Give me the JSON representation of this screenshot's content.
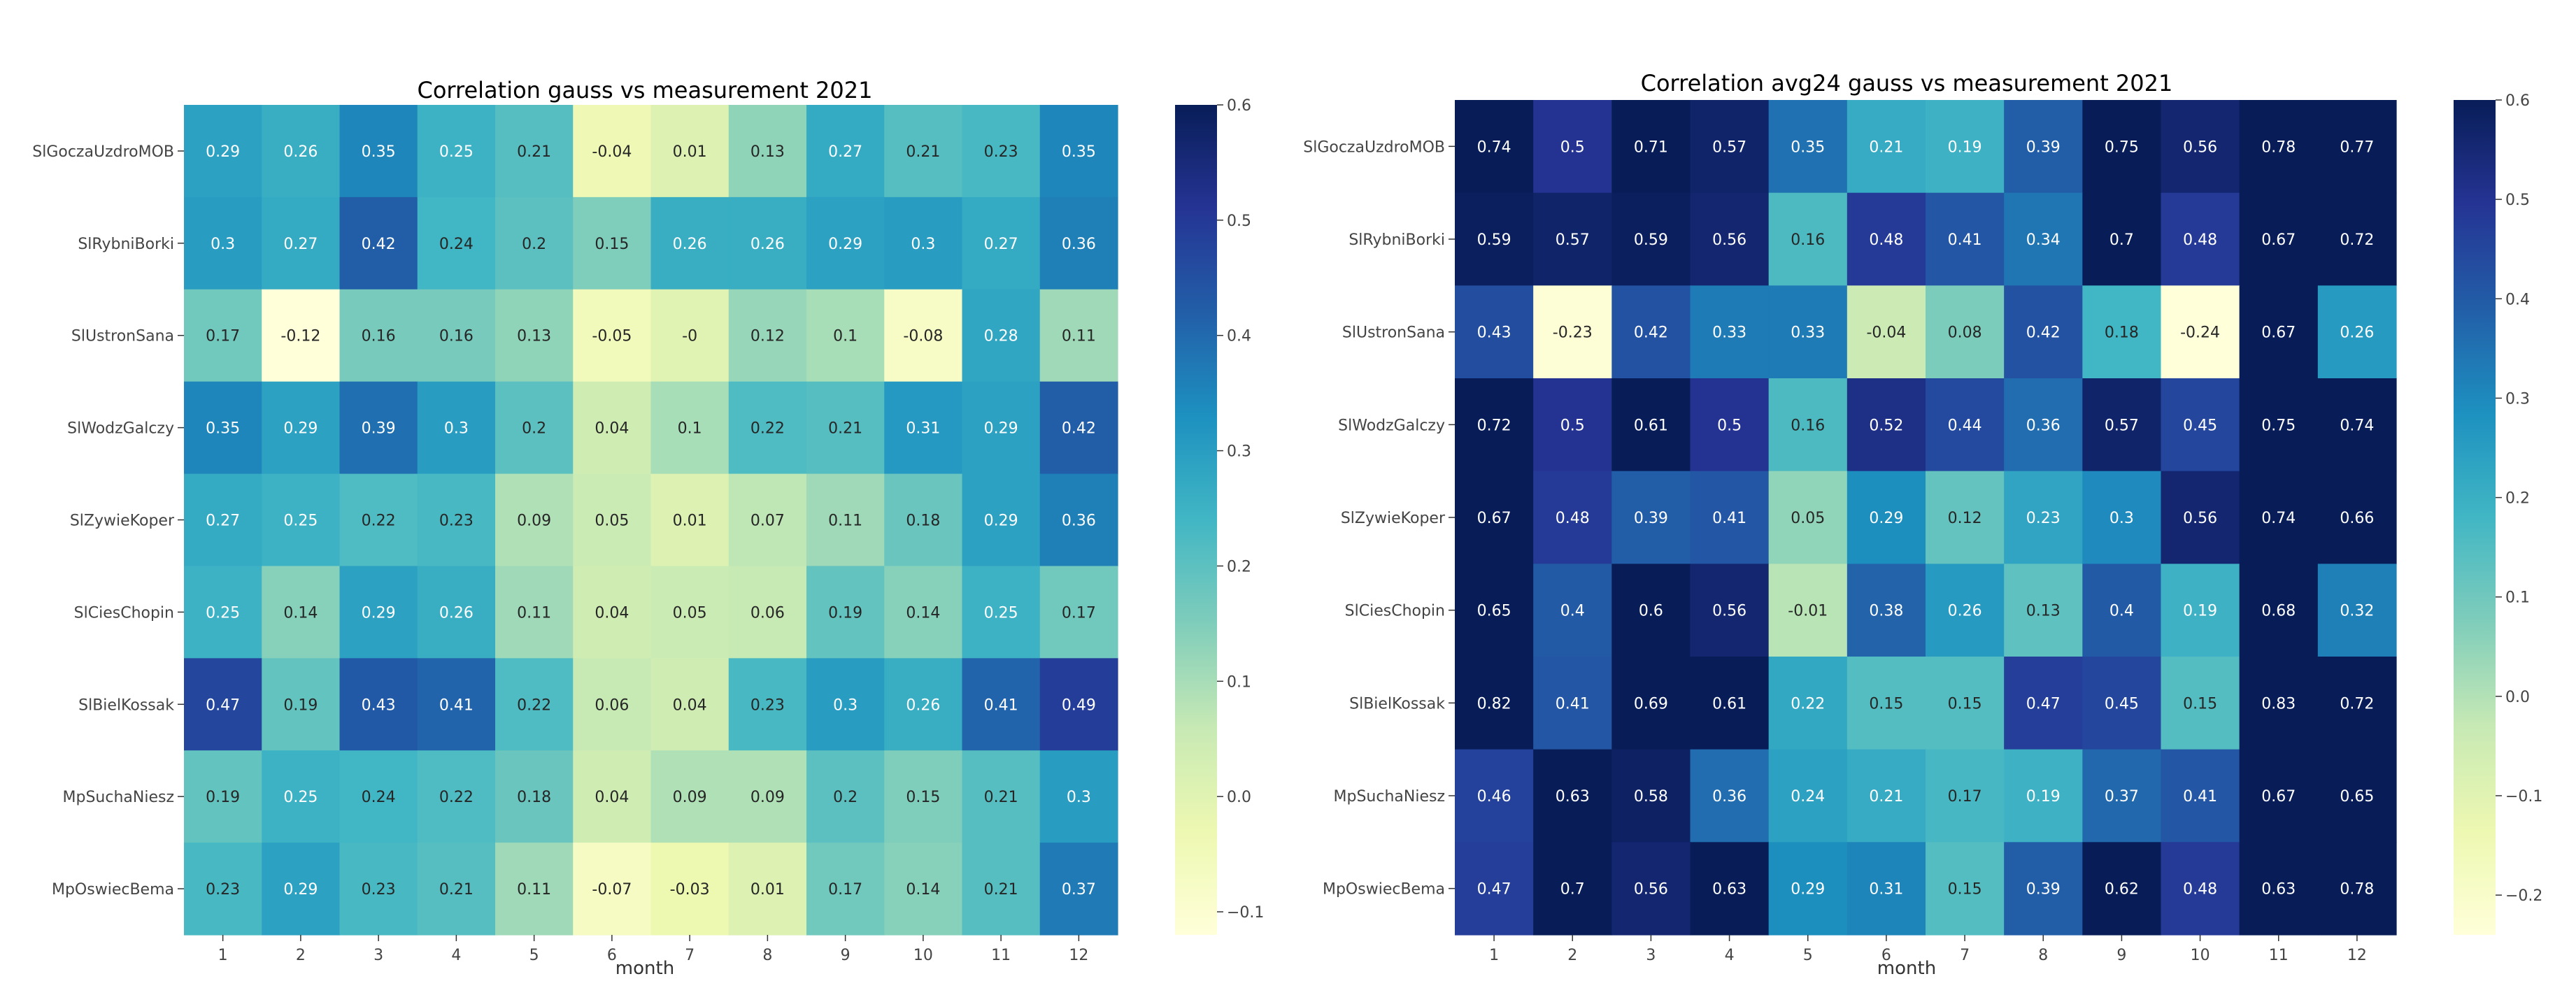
{
  "chart_data": [
    {
      "type": "heatmap",
      "title": "Correlation gauss vs measurement 2021",
      "xlabel": "month",
      "ylabel": "",
      "x_categories": [
        "1",
        "2",
        "3",
        "4",
        "5",
        "6",
        "7",
        "8",
        "9",
        "10",
        "11",
        "12"
      ],
      "y_categories": [
        "SlGoczaUzdroMOB",
        "SlRybniBorki",
        "SlUstronSana",
        "SlWodzGalczy",
        "SlZywieKoper",
        "SlCiesChopin",
        "SlBielKossak",
        "MpSuchaNiesz",
        "MpOswiecBema"
      ],
      "values": [
        [
          0.29,
          0.26,
          0.35,
          0.25,
          0.21,
          -0.04,
          0.01,
          0.13,
          0.27,
          0.21,
          0.23,
          0.35
        ],
        [
          0.3,
          0.27,
          0.42,
          0.24,
          0.2,
          0.15,
          0.26,
          0.26,
          0.29,
          0.3,
          0.27,
          0.36
        ],
        [
          0.17,
          -0.12,
          0.16,
          0.16,
          0.13,
          -0.05,
          0,
          0.12,
          0.1,
          -0.08,
          0.28,
          0.11
        ],
        [
          0.35,
          0.29,
          0.39,
          0.3,
          0.2,
          0.04,
          0.1,
          0.22,
          0.21,
          0.31,
          0.29,
          0.42
        ],
        [
          0.27,
          0.25,
          0.22,
          0.23,
          0.09,
          0.05,
          0.01,
          0.07,
          0.11,
          0.18,
          0.29,
          0.36
        ],
        [
          0.25,
          0.14,
          0.29,
          0.26,
          0.11,
          0.04,
          0.05,
          0.06,
          0.19,
          0.14,
          0.25,
          0.17
        ],
        [
          0.47,
          0.19,
          0.43,
          0.41,
          0.22,
          0.06,
          0.04,
          0.23,
          0.3,
          0.26,
          0.41,
          0.49
        ],
        [
          0.19,
          0.25,
          0.24,
          0.22,
          0.18,
          0.04,
          0.09,
          0.09,
          0.2,
          0.15,
          0.21,
          0.3
        ],
        [
          0.23,
          0.29,
          0.23,
          0.21,
          0.11,
          -0.07,
          -0.03,
          0.01,
          0.17,
          0.14,
          0.21,
          0.37
        ]
      ],
      "vmin": -0.12,
      "vmax": 0.6,
      "colorbar_ticks": [
        -0.1,
        0,
        0.1,
        0.2,
        0.3,
        0.4,
        0.5,
        0.6
      ],
      "colorbar_tick_labels": [
        "−0.1",
        "0.0",
        "0.1",
        "0.2",
        "0.3",
        "0.4",
        "0.5",
        "0.6"
      ],
      "cell_labels": [
        [
          "0.29",
          "0.26",
          "0.35",
          "0.25",
          "0.21",
          "-0.04",
          "0.01",
          "0.13",
          "0.27",
          "0.21",
          "0.23",
          "0.35"
        ],
        [
          "0.3",
          "0.27",
          "0.42",
          "0.24",
          "0.2",
          "0.15",
          "0.26",
          "0.26",
          "0.29",
          "0.3",
          "0.27",
          "0.36"
        ],
        [
          "0.17",
          "-0.12",
          "0.16",
          "0.16",
          "0.13",
          "-0.05",
          "-0",
          "0.12",
          "0.1",
          "-0.08",
          "0.28",
          "0.11"
        ],
        [
          "0.35",
          "0.29",
          "0.39",
          "0.3",
          "0.2",
          "0.04",
          "0.1",
          "0.22",
          "0.21",
          "0.31",
          "0.29",
          "0.42"
        ],
        [
          "0.27",
          "0.25",
          "0.22",
          "0.23",
          "0.09",
          "0.05",
          "0.01",
          "0.07",
          "0.11",
          "0.18",
          "0.29",
          "0.36"
        ],
        [
          "0.25",
          "0.14",
          "0.29",
          "0.26",
          "0.11",
          "0.04",
          "0.05",
          "0.06",
          "0.19",
          "0.14",
          "0.25",
          "0.17"
        ],
        [
          "0.47",
          "0.19",
          "0.43",
          "0.41",
          "0.22",
          "0.06",
          "0.04",
          "0.23",
          "0.3",
          "0.26",
          "0.41",
          "0.49"
        ],
        [
          "0.19",
          "0.25",
          "0.24",
          "0.22",
          "0.18",
          "0.04",
          "0.09",
          "0.09",
          "0.2",
          "0.15",
          "0.21",
          "0.3"
        ],
        [
          "0.23",
          "0.29",
          "0.23",
          "0.21",
          "0.11",
          "-0.07",
          "-0.03",
          "0.01",
          "0.17",
          "0.14",
          "0.21",
          "0.37"
        ]
      ],
      "colormap": "YlGnBu"
    },
    {
      "type": "heatmap",
      "title": "Correlation avg24 gauss vs measurement 2021",
      "xlabel": "month",
      "ylabel": "",
      "x_categories": [
        "1",
        "2",
        "3",
        "4",
        "5",
        "6",
        "7",
        "8",
        "9",
        "10",
        "11",
        "12"
      ],
      "y_categories": [
        "SlGoczaUzdroMOB",
        "SlRybniBorki",
        "SlUstronSana",
        "SlWodzGalczy",
        "SlZywieKoper",
        "SlCiesChopin",
        "SlBielKossak",
        "MpSuchaNiesz",
        "MpOswiecBema"
      ],
      "values": [
        [
          0.74,
          0.5,
          0.71,
          0.57,
          0.35,
          0.21,
          0.19,
          0.39,
          0.75,
          0.56,
          0.78,
          0.77
        ],
        [
          0.59,
          0.57,
          0.59,
          0.56,
          0.16,
          0.48,
          0.41,
          0.34,
          0.7,
          0.48,
          0.67,
          0.72
        ],
        [
          0.43,
          -0.23,
          0.42,
          0.33,
          0.33,
          -0.04,
          0.08,
          0.42,
          0.18,
          -0.24,
          0.67,
          0.26
        ],
        [
          0.72,
          0.5,
          0.61,
          0.5,
          0.16,
          0.52,
          0.44,
          0.36,
          0.57,
          0.45,
          0.75,
          0.74
        ],
        [
          0.67,
          0.48,
          0.39,
          0.41,
          0.05,
          0.29,
          0.12,
          0.23,
          0.3,
          0.56,
          0.74,
          0.66
        ],
        [
          0.65,
          0.4,
          0.6,
          0.56,
          -0.01,
          0.38,
          0.26,
          0.13,
          0.4,
          0.19,
          0.68,
          0.32
        ],
        [
          0.82,
          0.41,
          0.69,
          0.61,
          0.22,
          0.15,
          0.15,
          0.47,
          0.45,
          0.15,
          0.83,
          0.72
        ],
        [
          0.46,
          0.63,
          0.58,
          0.36,
          0.24,
          0.21,
          0.17,
          0.19,
          0.37,
          0.41,
          0.67,
          0.65
        ],
        [
          0.47,
          0.7,
          0.56,
          0.63,
          0.29,
          0.31,
          0.15,
          0.39,
          0.62,
          0.48,
          0.63,
          0.78
        ]
      ],
      "vmin": -0.24,
      "vmax": 0.6,
      "colorbar_ticks": [
        -0.2,
        -0.1,
        0,
        0.1,
        0.2,
        0.3,
        0.4,
        0.5,
        0.6
      ],
      "colorbar_tick_labels": [
        "−0.2",
        "−0.1",
        "0.0",
        "0.1",
        "0.2",
        "0.3",
        "0.4",
        "0.5",
        "0.6"
      ],
      "cell_labels": [
        [
          "0.74",
          "0.5",
          "0.71",
          "0.57",
          "0.35",
          "0.21",
          "0.19",
          "0.39",
          "0.75",
          "0.56",
          "0.78",
          "0.77"
        ],
        [
          "0.59",
          "0.57",
          "0.59",
          "0.56",
          "0.16",
          "0.48",
          "0.41",
          "0.34",
          "0.7",
          "0.48",
          "0.67",
          "0.72"
        ],
        [
          "0.43",
          "-0.23",
          "0.42",
          "0.33",
          "0.33",
          "-0.04",
          "0.08",
          "0.42",
          "0.18",
          "-0.24",
          "0.67",
          "0.26"
        ],
        [
          "0.72",
          "0.5",
          "0.61",
          "0.5",
          "0.16",
          "0.52",
          "0.44",
          "0.36",
          "0.57",
          "0.45",
          "0.75",
          "0.74"
        ],
        [
          "0.67",
          "0.48",
          "0.39",
          "0.41",
          "0.05",
          "0.29",
          "0.12",
          "0.23",
          "0.3",
          "0.56",
          "0.74",
          "0.66"
        ],
        [
          "0.65",
          "0.4",
          "0.6",
          "0.56",
          "-0.01",
          "0.38",
          "0.26",
          "0.13",
          "0.4",
          "0.19",
          "0.68",
          "0.32"
        ],
        [
          "0.82",
          "0.41",
          "0.69",
          "0.61",
          "0.22",
          "0.15",
          "0.15",
          "0.47",
          "0.45",
          "0.15",
          "0.83",
          "0.72"
        ],
        [
          "0.46",
          "0.63",
          "0.58",
          "0.36",
          "0.24",
          "0.21",
          "0.17",
          "0.19",
          "0.37",
          "0.41",
          "0.67",
          "0.65"
        ],
        [
          "0.47",
          "0.7",
          "0.56",
          "0.63",
          "0.29",
          "0.31",
          "0.15",
          "0.39",
          "0.62",
          "0.48",
          "0.63",
          "0.78"
        ]
      ],
      "colormap": "YlGnBu"
    }
  ]
}
